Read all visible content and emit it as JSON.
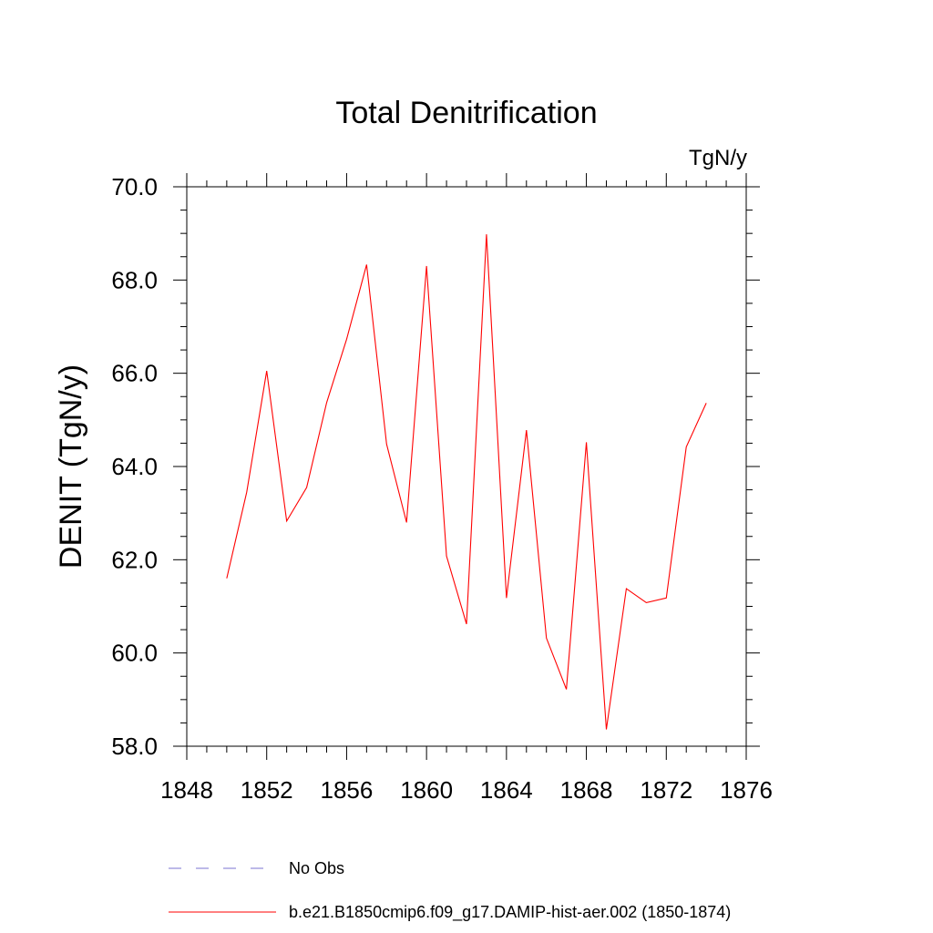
{
  "chart_data": {
    "type": "line",
    "title": "Total Denitrification",
    "units_label": "TgN/y",
    "ylabel": "DENIT  (TgN/y)",
    "xlabel": "",
    "xlim": [
      1848,
      1876
    ],
    "ylim": [
      58.0,
      70.0
    ],
    "x_ticks": [
      1848,
      1852,
      1856,
      1860,
      1864,
      1868,
      1872,
      1876
    ],
    "x_tick_labels": [
      "1848",
      "1852",
      "1856",
      "1860",
      "1864",
      "1868",
      "1872",
      "1876"
    ],
    "y_ticks": [
      58,
      60,
      62,
      64,
      66,
      68,
      70
    ],
    "y_tick_labels": [
      "58.0",
      "60.0",
      "62.0",
      "64.0",
      "66.0",
      "68.0",
      "70.0"
    ],
    "grid": false,
    "legend_position": "bottom",
    "series": [
      {
        "name": "b.e21.B1850cmip6.f09_g17.DAMIP-hist-aer.002 (1850-1874)",
        "color": "#ff0000",
        "style": "solid",
        "x": [
          1850,
          1851,
          1852,
          1853,
          1854,
          1855,
          1856,
          1857,
          1858,
          1859,
          1860,
          1861,
          1862,
          1863,
          1864,
          1865,
          1866,
          1867,
          1868,
          1869,
          1870,
          1871,
          1872,
          1873,
          1874
        ],
        "y": [
          61.6,
          63.45,
          66.05,
          62.83,
          63.55,
          65.37,
          66.73,
          68.33,
          64.48,
          62.8,
          68.3,
          62.08,
          60.62,
          68.98,
          61.18,
          64.78,
          60.32,
          59.22,
          64.52,
          58.36,
          61.38,
          61.08,
          61.18,
          64.42,
          65.36
        ]
      }
    ],
    "legend": [
      {
        "label": "No Obs",
        "color": "#7b73d0",
        "style": "dashed"
      },
      {
        "label": "b.e21.B1850cmip6.f09_g17.DAMIP-hist-aer.002 (1850-1874)",
        "color": "#ff0000",
        "style": "solid"
      }
    ]
  }
}
